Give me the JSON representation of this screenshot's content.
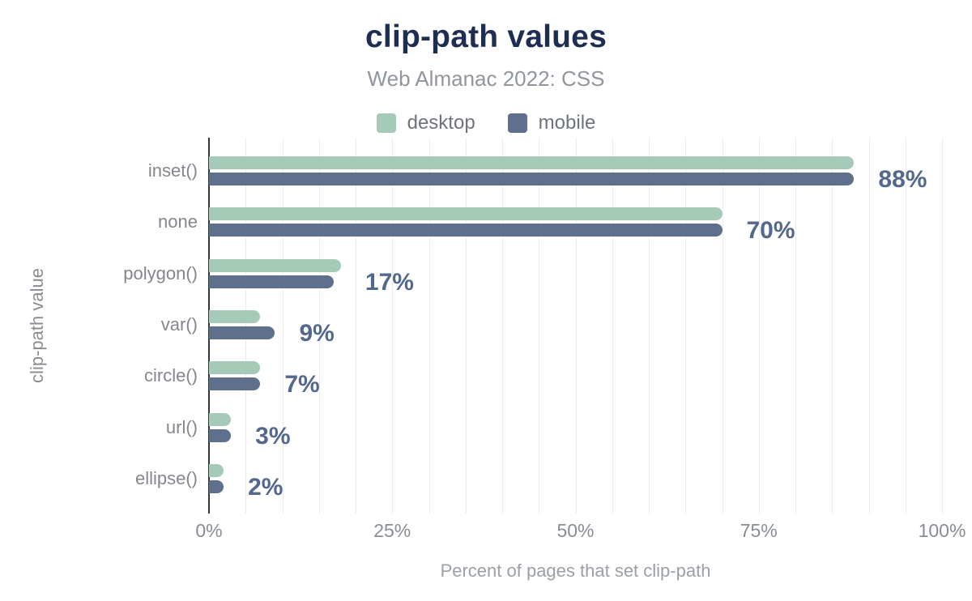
{
  "chart_data": {
    "type": "bar",
    "orientation": "horizontal",
    "title": "clip-path values",
    "subtitle": "Web Almanac 2022: CSS",
    "categories": [
      "inset()",
      "none",
      "polygon()",
      "var()",
      "circle()",
      "url()",
      "ellipse()"
    ],
    "series": [
      {
        "name": "desktop",
        "color": "#a5cab7",
        "values": [
          88,
          70,
          18,
          7,
          7,
          3,
          2
        ]
      },
      {
        "name": "mobile",
        "color": "#5e708c",
        "values": [
          88,
          70,
          17,
          9,
          7,
          3,
          2
        ]
      }
    ],
    "value_labels": [
      "88%",
      "70%",
      "17%",
      "9%",
      "7%",
      "3%",
      "2%"
    ],
    "xlabel": "Percent of pages that set clip-path",
    "ylabel": "clip-path value",
    "xlim": [
      0,
      100
    ],
    "xticks": [
      "0%",
      "25%",
      "50%",
      "75%",
      "100%"
    ],
    "xtick_values": [
      0,
      25,
      50,
      75,
      100
    ],
    "grid": {
      "vertical_step_percent": 5,
      "color": "#ededf0"
    },
    "legend_position": "top",
    "title_color": "#1e2e52",
    "value_label_color": "#53688c"
  }
}
